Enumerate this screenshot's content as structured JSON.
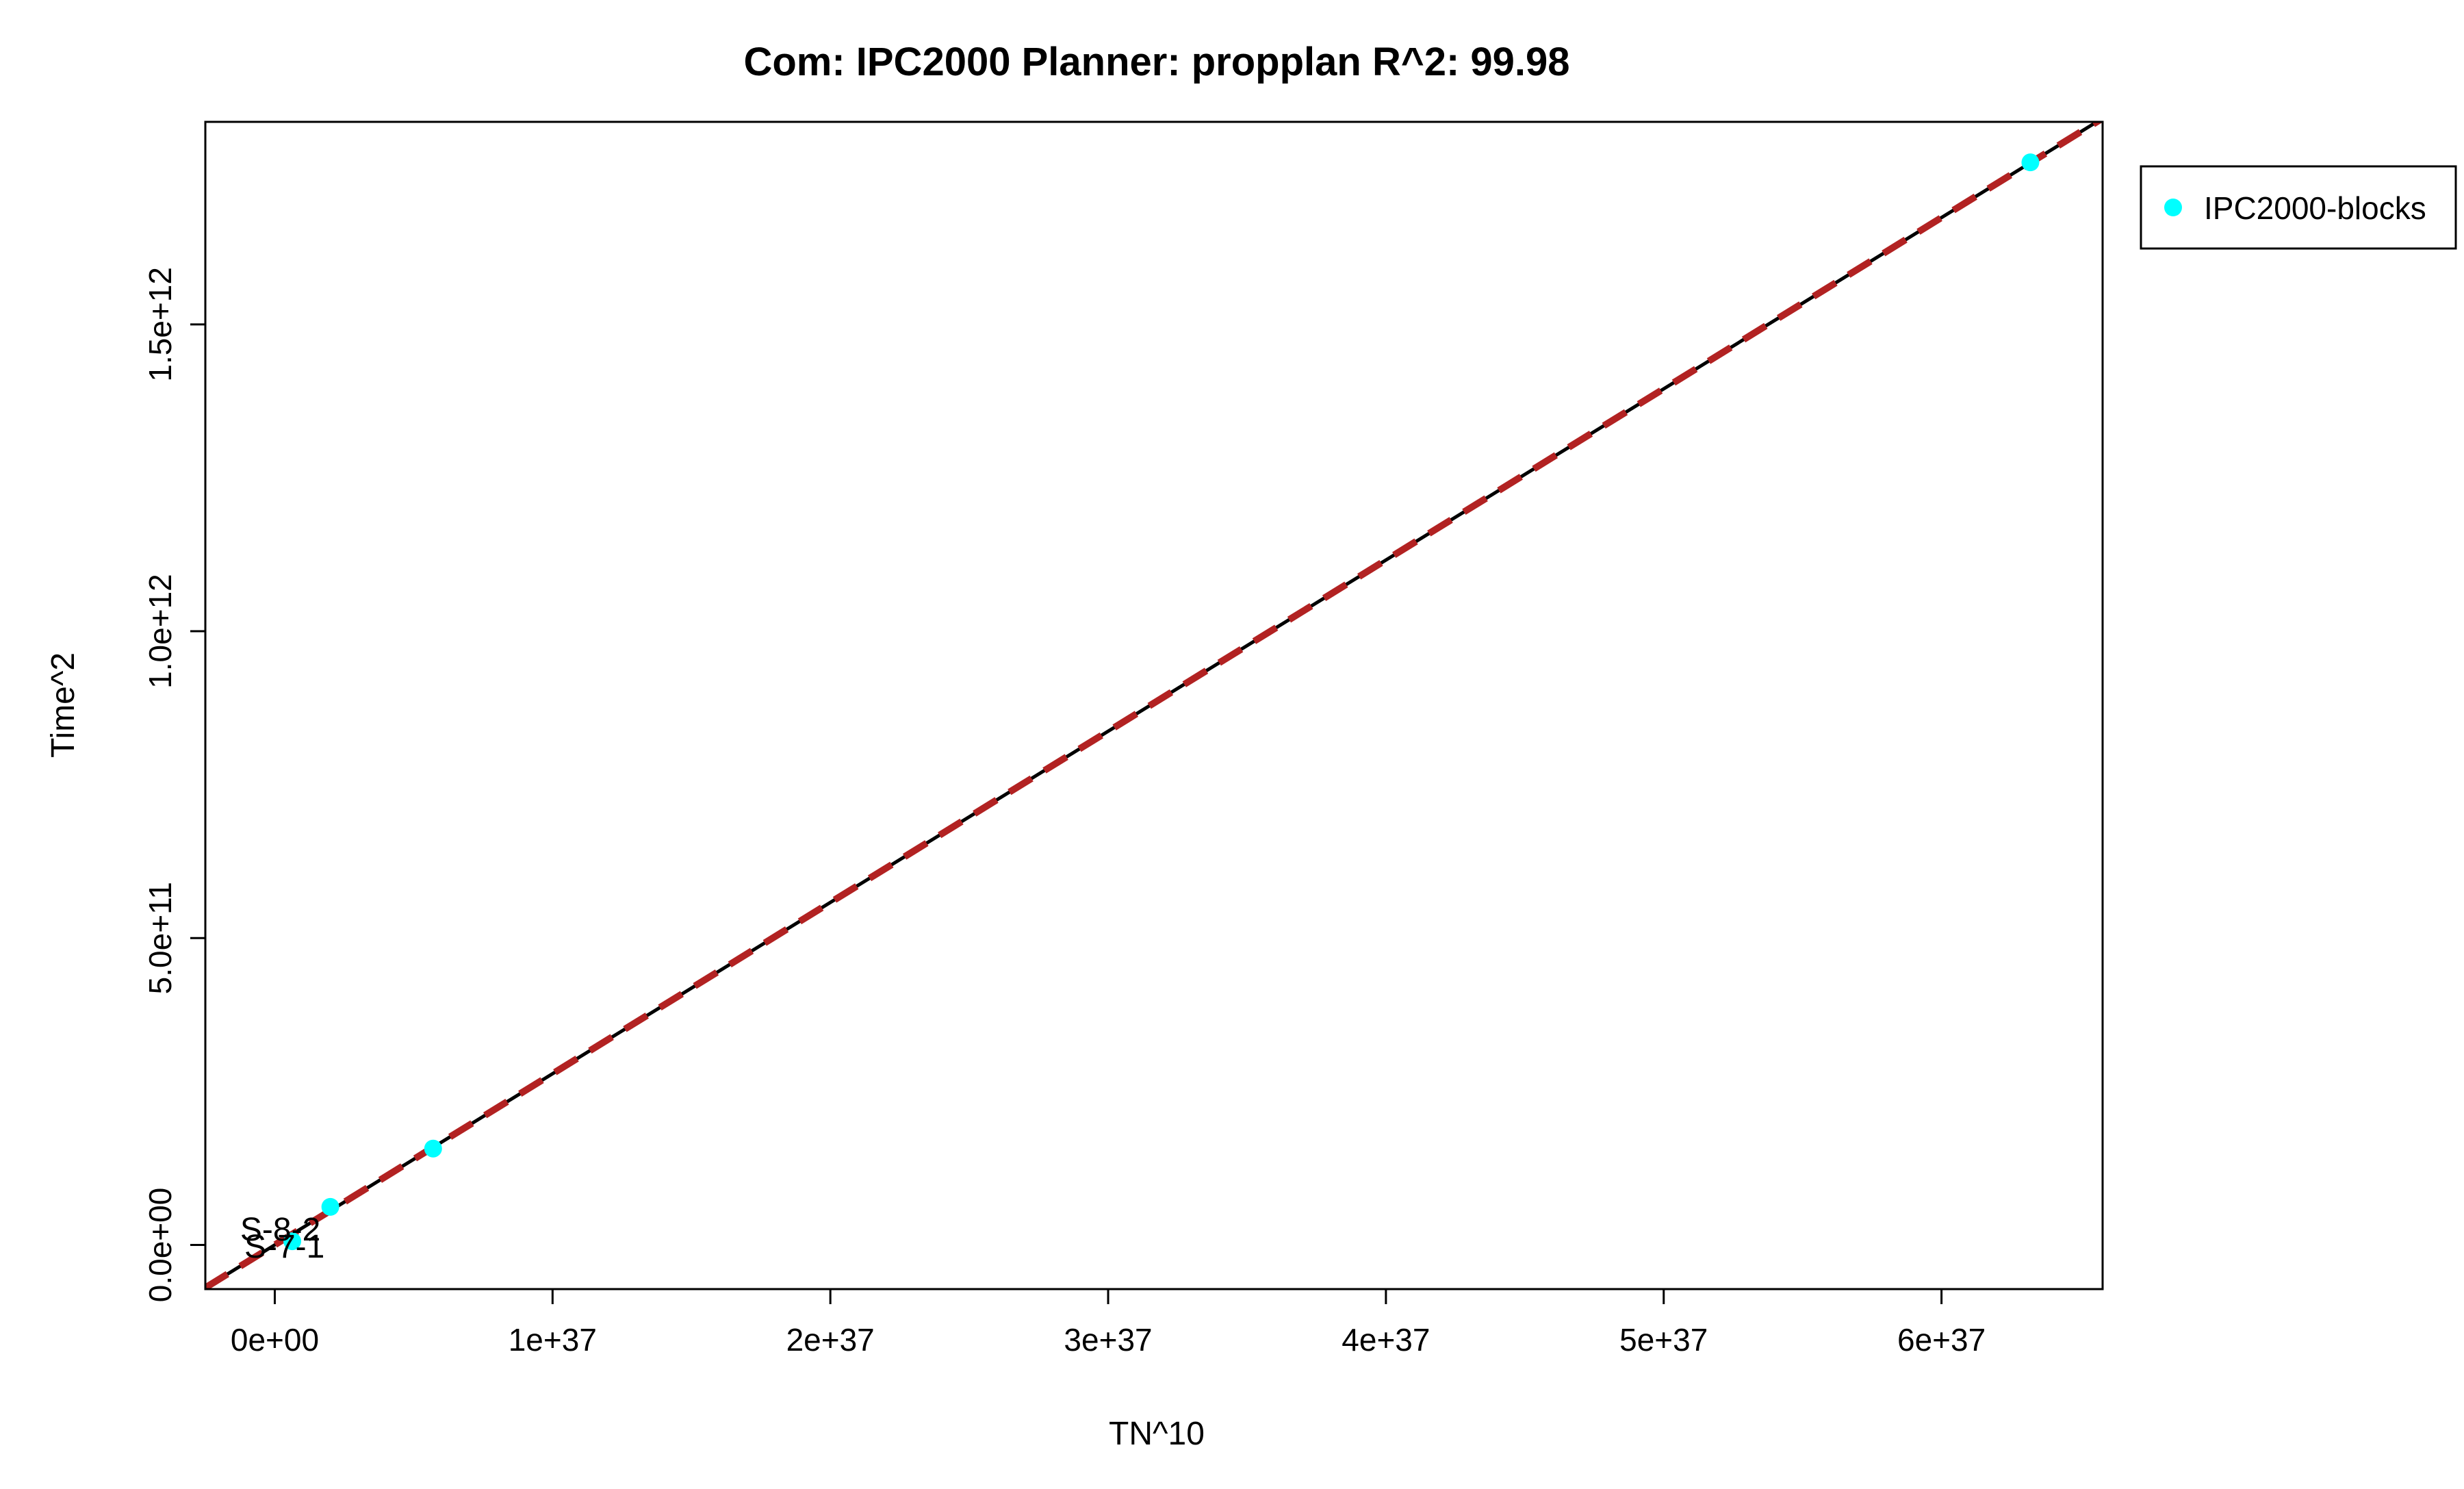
{
  "chart_data": {
    "type": "scatter",
    "title": "Com: IPC2000 Planner: propplan R^2: 99.98",
    "xlabel": "TN^10",
    "ylabel": "Time^2",
    "xlim": [
      -2.5e+36,
      6.58e+37
    ],
    "ylim": [
      -72000000000.0,
      1830000000000.0
    ],
    "x_ticks": [
      {
        "value": 0,
        "label": "0e+00"
      },
      {
        "value": 1e+37,
        "label": "1e+37"
      },
      {
        "value": 2e+37,
        "label": "2e+37"
      },
      {
        "value": 3e+37,
        "label": "3e+37"
      },
      {
        "value": 4e+37,
        "label": "4e+37"
      },
      {
        "value": 5e+37,
        "label": "5e+37"
      },
      {
        "value": 6e+37,
        "label": "6e+37"
      }
    ],
    "y_ticks": [
      {
        "value": 0,
        "label": "0.0e+00"
      },
      {
        "value": 500000000000.0,
        "label": "5.0e+11"
      },
      {
        "value": 1000000000000.0,
        "label": "1.0e+12"
      },
      {
        "value": 1500000000000.0,
        "label": "1.5e+12"
      }
    ],
    "series": [
      {
        "name": "IPC2000-blocks",
        "color": "#00ffff",
        "points": [
          {
            "x": 6.3e+35,
            "y": 6000000000.0
          },
          {
            "x": 2e+36,
            "y": 62000000000.0
          },
          {
            "x": 5.7e+36,
            "y": 157000000000.0
          },
          {
            "x": 6.32e+37,
            "y": 1764000000000.0
          }
        ]
      }
    ],
    "fit_lines": [
      {
        "style": "solid",
        "color": "#000000",
        "slope": 2.79e-26,
        "intercept": 0
      },
      {
        "style": "dashed",
        "color": "#b22222",
        "slope": 2.79e-26,
        "intercept": 0
      }
    ],
    "annotations": [
      {
        "text": "S-8-2",
        "x": 2e+35,
        "y": 25000000000.0
      },
      {
        "text": "S-7-1",
        "x": 3.5e+35,
        "y": -3000000000.0
      }
    ],
    "legend_position": "right-outside-top",
    "grid": false
  }
}
